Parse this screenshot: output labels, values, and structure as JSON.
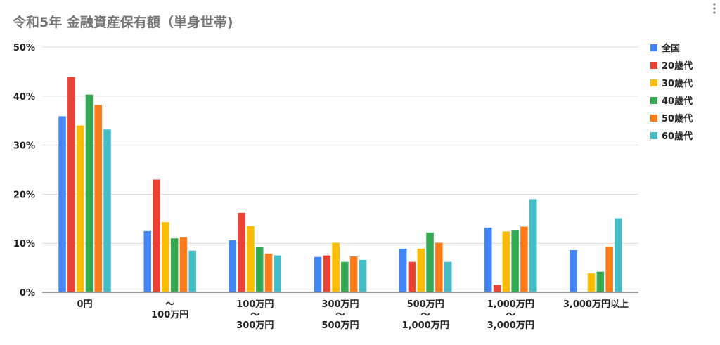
{
  "chart_data": {
    "type": "bar",
    "title": "令和5年 金融資産保有額（単身世帯)",
    "xlabel": "",
    "ylabel": "",
    "ylim": [
      0,
      50
    ],
    "y_ticks": [
      "0%",
      "10%",
      "20%",
      "30%",
      "40%",
      "50%"
    ],
    "y_tick_values": [
      0,
      10,
      20,
      30,
      40,
      50
    ],
    "grid": true,
    "legend_position": "right",
    "categories": [
      [
        "0円"
      ],
      [
        "～",
        "100万円"
      ],
      [
        "100万円",
        "～",
        "300万円"
      ],
      [
        "300万円",
        "～",
        "500万円"
      ],
      [
        "500万円",
        "～",
        "1,000万円"
      ],
      [
        "1,000万円",
        "～",
        "3,000万円"
      ],
      [
        "3,000万円以上"
      ]
    ],
    "series": [
      {
        "name": "全国",
        "color": "#4285f4",
        "values": [
          35.9,
          12.5,
          10.6,
          7.2,
          8.9,
          13.2,
          8.6
        ]
      },
      {
        "name": "20歳代",
        "color": "#ea4335",
        "values": [
          43.9,
          23.0,
          16.2,
          7.5,
          6.2,
          1.5,
          0
        ]
      },
      {
        "name": "30歳代",
        "color": "#fbbc04",
        "values": [
          34.0,
          14.3,
          13.5,
          10.1,
          8.9,
          12.4,
          3.9
        ]
      },
      {
        "name": "40歳代",
        "color": "#34a853",
        "values": [
          40.3,
          11.0,
          9.2,
          6.2,
          12.2,
          12.6,
          4.2
        ]
      },
      {
        "name": "50歳代",
        "color": "#fa7b17",
        "values": [
          38.2,
          11.2,
          7.9,
          7.3,
          10.1,
          13.4,
          9.3
        ]
      },
      {
        "name": "60歳代",
        "color": "#46bdc6",
        "values": [
          33.2,
          8.5,
          7.5,
          6.6,
          6.2,
          19.0,
          15.1
        ]
      }
    ]
  },
  "menu_icon": "more-vert-icon"
}
